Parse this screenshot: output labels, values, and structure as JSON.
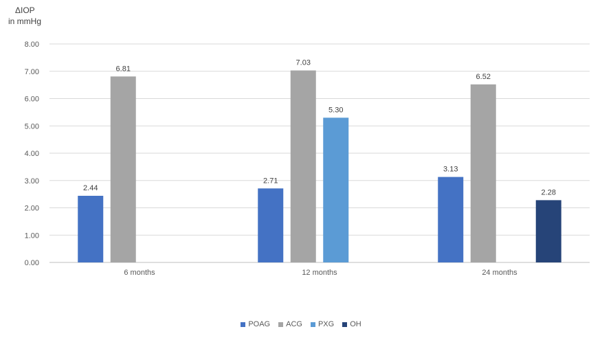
{
  "chart_data": {
    "type": "bar",
    "ylabel_lines": [
      "ΔIOP",
      "in mmHg"
    ],
    "categories": [
      "6 months",
      "12 months",
      "24 months"
    ],
    "ylim": [
      0,
      8
    ],
    "yticks": [
      "0.00",
      "1.00",
      "2.00",
      "3.00",
      "4.00",
      "5.00",
      "6.00",
      "7.00",
      "8.00"
    ],
    "grid": true,
    "legend_position": "bottom",
    "series": [
      {
        "name": "POAG",
        "color": "#4472C4",
        "values": [
          2.44,
          2.71,
          3.13
        ],
        "labels": [
          "2.44",
          "2.71",
          "3.13"
        ]
      },
      {
        "name": "ACG",
        "color": "#A5A5A5",
        "values": [
          6.81,
          7.03,
          6.52
        ],
        "labels": [
          "6.81",
          "7.03",
          "6.52"
        ]
      },
      {
        "name": "PXG",
        "color": "#5B9BD5",
        "values": [
          null,
          5.3,
          null
        ],
        "labels": [
          null,
          "5.30",
          null
        ]
      },
      {
        "name": "OH",
        "color": "#264478",
        "values": [
          null,
          null,
          2.28
        ],
        "labels": [
          null,
          null,
          "2.28"
        ]
      }
    ]
  }
}
